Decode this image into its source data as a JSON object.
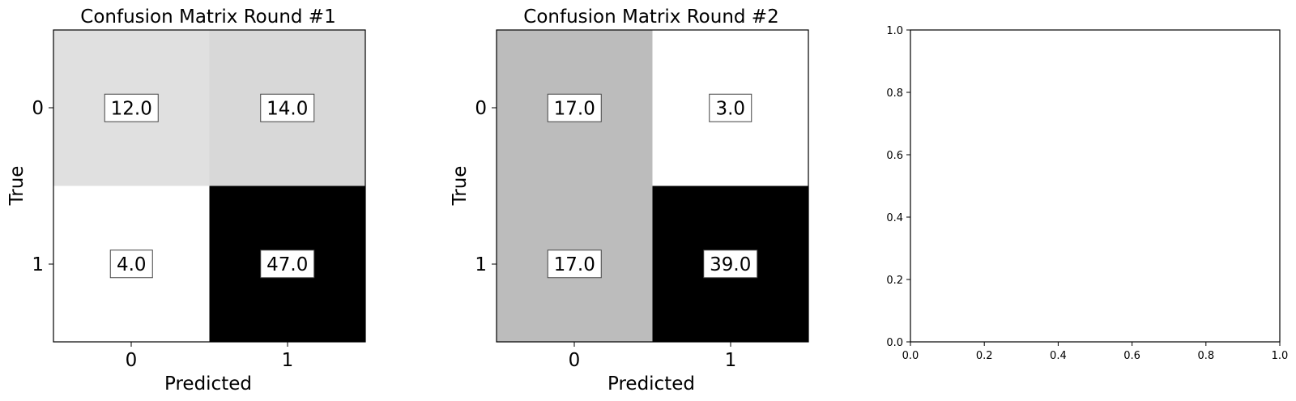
{
  "chart_data": [
    {
      "type": "heatmap",
      "title": "Confusion Matrix Round #1",
      "xlabel": "Predicted",
      "ylabel": "True",
      "x_ticks": [
        "0",
        "1"
      ],
      "y_ticks": [
        "0",
        "1"
      ],
      "colormap": "Greys",
      "matrix": [
        [
          12.0,
          14.0
        ],
        [
          4.0,
          47.0
        ]
      ],
      "cell_labels": [
        [
          "12.0",
          "14.0"
        ],
        [
          "4.0",
          "47.0"
        ]
      ]
    },
    {
      "type": "heatmap",
      "title": "Confusion Matrix Round #2",
      "xlabel": "Predicted",
      "ylabel": "True",
      "x_ticks": [
        "0",
        "1"
      ],
      "y_ticks": [
        "0",
        "1"
      ],
      "colormap": "Greys",
      "matrix": [
        [
          17.0,
          3.0
        ],
        [
          17.0,
          39.0
        ]
      ],
      "cell_labels": [
        [
          "17.0",
          "3.0"
        ],
        [
          "17.0",
          "39.0"
        ]
      ]
    },
    {
      "type": "line",
      "title": "",
      "xlabel": "",
      "ylabel": "",
      "xlim": [
        0.0,
        1.0
      ],
      "ylim": [
        0.0,
        1.0
      ],
      "x_ticks": [
        "0.0",
        "0.2",
        "0.4",
        "0.6",
        "0.8",
        "1.0"
      ],
      "y_ticks": [
        "0.0",
        "0.2",
        "0.4",
        "0.6",
        "0.8",
        "1.0"
      ],
      "series": []
    }
  ]
}
